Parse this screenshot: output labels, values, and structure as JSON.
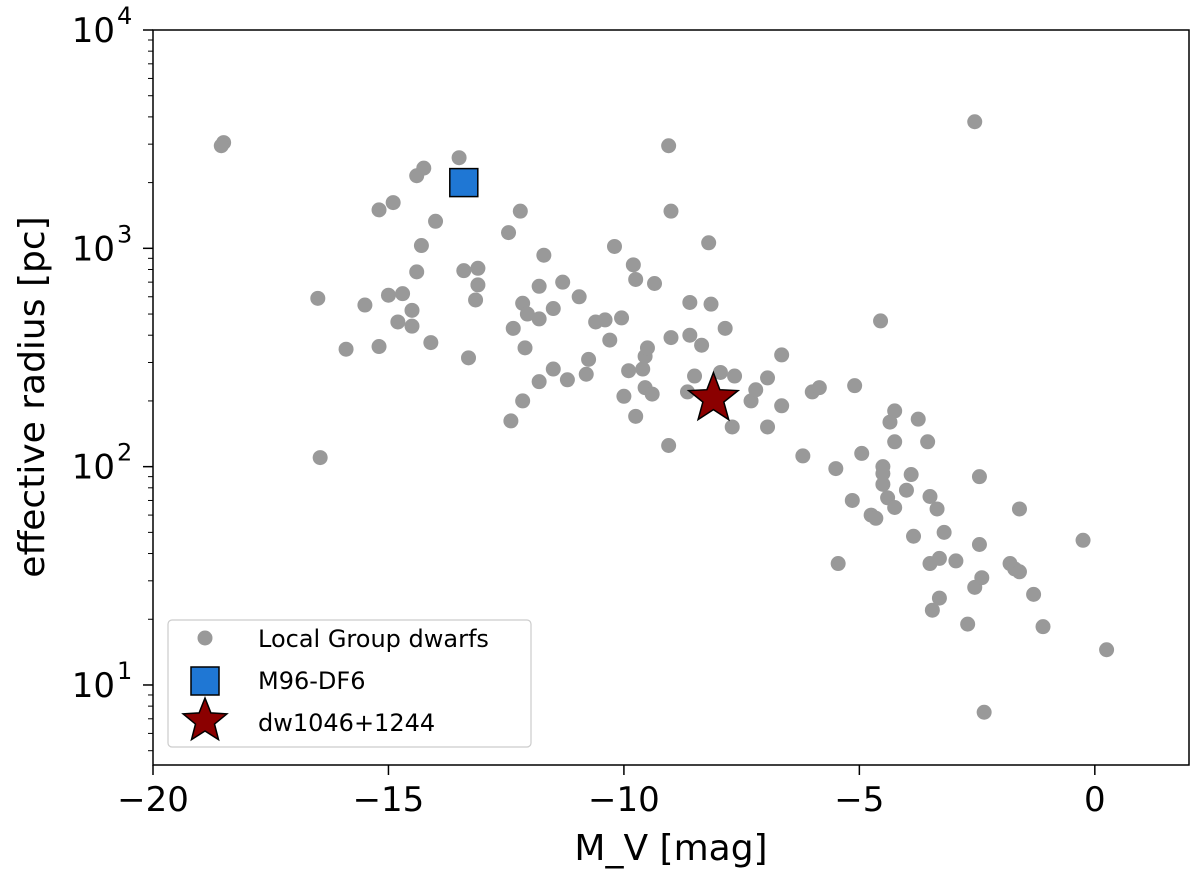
{
  "chart_data": {
    "type": "scatter",
    "title": "",
    "xlabel": "M_V [mag]",
    "ylabel": "effective radius [pc]",
    "xlim": [
      -20,
      2
    ],
    "ylim": [
      4.3,
      10000
    ],
    "yscale": "log",
    "x_ticks": [
      -20,
      -15,
      -10,
      -5,
      0
    ],
    "x_tick_labels": [
      "−20",
      "−15",
      "−10",
      "−5",
      "0"
    ],
    "y_ticks": [
      10,
      100,
      1000,
      10000
    ],
    "y_tick_labels": [
      {
        "base": "10",
        "exp": "1"
      },
      {
        "base": "10",
        "exp": "2"
      },
      {
        "base": "10",
        "exp": "3"
      },
      {
        "base": "10",
        "exp": "4"
      }
    ],
    "legend": {
      "position": "lower-left",
      "entries": [
        "Local Group dwarfs",
        "M96-DF6",
        "dw1046+1244"
      ]
    },
    "series": [
      {
        "name": "Local Group dwarfs",
        "marker": "circle",
        "color": "#999999",
        "points": [
          [
            -18.5,
            3050
          ],
          [
            -18.55,
            2950
          ],
          [
            -16.5,
            590
          ],
          [
            -16.45,
            110
          ],
          [
            -15.9,
            345
          ],
          [
            -15.5,
            550
          ],
          [
            -15.2,
            1500
          ],
          [
            -15.2,
            355
          ],
          [
            -15.0,
            610
          ],
          [
            -14.9,
            1620
          ],
          [
            -14.8,
            460
          ],
          [
            -14.7,
            620
          ],
          [
            -14.5,
            440
          ],
          [
            -14.5,
            520
          ],
          [
            -14.4,
            780
          ],
          [
            -14.3,
            1030
          ],
          [
            -14.4,
            2150
          ],
          [
            -14.25,
            2330
          ],
          [
            -14.1,
            370
          ],
          [
            -14.0,
            1330
          ],
          [
            -13.5,
            2600
          ],
          [
            -13.4,
            790
          ],
          [
            -13.3,
            315
          ],
          [
            -13.15,
            580
          ],
          [
            -13.1,
            680
          ],
          [
            -13.1,
            810
          ],
          [
            -12.45,
            1180
          ],
          [
            -12.35,
            430
          ],
          [
            -12.4,
            162
          ],
          [
            -12.2,
            1480
          ],
          [
            -12.15,
            560
          ],
          [
            -12.05,
            500
          ],
          [
            -12.1,
            350
          ],
          [
            -12.15,
            200
          ],
          [
            -11.8,
            670
          ],
          [
            -11.8,
            475
          ],
          [
            -11.8,
            245
          ],
          [
            -11.7,
            930
          ],
          [
            -11.5,
            530
          ],
          [
            -11.5,
            280
          ],
          [
            -11.3,
            700
          ],
          [
            -11.2,
            250
          ],
          [
            -10.95,
            600
          ],
          [
            -10.8,
            265
          ],
          [
            -10.75,
            310
          ],
          [
            -10.6,
            460
          ],
          [
            -10.4,
            470
          ],
          [
            -10.3,
            380
          ],
          [
            -10.2,
            1020
          ],
          [
            -10.05,
            480
          ],
          [
            -10.0,
            210
          ],
          [
            -9.9,
            275
          ],
          [
            -9.8,
            840
          ],
          [
            -9.75,
            170
          ],
          [
            -9.75,
            720
          ],
          [
            -9.6,
            280
          ],
          [
            -9.55,
            230
          ],
          [
            -9.55,
            320
          ],
          [
            -9.5,
            350
          ],
          [
            -9.4,
            215
          ],
          [
            -9.35,
            690
          ],
          [
            -9.05,
            2950
          ],
          [
            -9.0,
            1480
          ],
          [
            -9.05,
            125
          ],
          [
            -9.0,
            390
          ],
          [
            -8.65,
            220
          ],
          [
            -8.6,
            400
          ],
          [
            -8.6,
            565
          ],
          [
            -8.5,
            260
          ],
          [
            -8.35,
            360
          ],
          [
            -8.2,
            1060
          ],
          [
            -8.15,
            555
          ],
          [
            -7.95,
            270
          ],
          [
            -7.85,
            430
          ],
          [
            -7.7,
            152
          ],
          [
            -7.65,
            260
          ],
          [
            -7.3,
            200
          ],
          [
            -7.2,
            225
          ],
          [
            -6.95,
            255
          ],
          [
            -6.95,
            152
          ],
          [
            -6.65,
            325
          ],
          [
            -6.65,
            190
          ],
          [
            -6.2,
            112
          ],
          [
            -6.0,
            220
          ],
          [
            -5.85,
            230
          ],
          [
            -5.5,
            98
          ],
          [
            -5.45,
            36
          ],
          [
            -5.15,
            70
          ],
          [
            -5.1,
            235
          ],
          [
            -4.95,
            115
          ],
          [
            -4.75,
            60
          ],
          [
            -4.65,
            58
          ],
          [
            -4.55,
            465
          ],
          [
            -4.5,
            83
          ],
          [
            -4.5,
            93
          ],
          [
            -4.5,
            100
          ],
          [
            -4.4,
            72
          ],
          [
            -4.35,
            160
          ],
          [
            -4.25,
            180
          ],
          [
            -4.25,
            130
          ],
          [
            -4.25,
            65
          ],
          [
            -4.0,
            78
          ],
          [
            -3.9,
            92
          ],
          [
            -3.85,
            48
          ],
          [
            -3.75,
            165
          ],
          [
            -3.55,
            130
          ],
          [
            -3.5,
            73
          ],
          [
            -3.5,
            36
          ],
          [
            -3.45,
            22
          ],
          [
            -3.35,
            64
          ],
          [
            -3.3,
            38
          ],
          [
            -3.3,
            25
          ],
          [
            -3.2,
            50
          ],
          [
            -2.95,
            37
          ],
          [
            -2.7,
            19
          ],
          [
            -2.55,
            3800
          ],
          [
            -2.55,
            28
          ],
          [
            -2.45,
            90
          ],
          [
            -2.45,
            44
          ],
          [
            -2.4,
            31
          ],
          [
            -2.35,
            7.5
          ],
          [
            -1.8,
            36
          ],
          [
            -1.7,
            34
          ],
          [
            -1.6,
            33
          ],
          [
            -1.6,
            64
          ],
          [
            -1.3,
            26
          ],
          [
            -1.1,
            18.5
          ],
          [
            -0.25,
            46
          ],
          [
            0.25,
            14.5
          ]
        ]
      },
      {
        "name": "M96-DF6",
        "marker": "square",
        "color": "#1f77d4",
        "points": [
          [
            -13.4,
            2000
          ]
        ]
      },
      {
        "name": "dw1046+1244",
        "marker": "star",
        "color": "#8b0000",
        "points": [
          [
            -8.1,
            205
          ]
        ]
      }
    ]
  }
}
